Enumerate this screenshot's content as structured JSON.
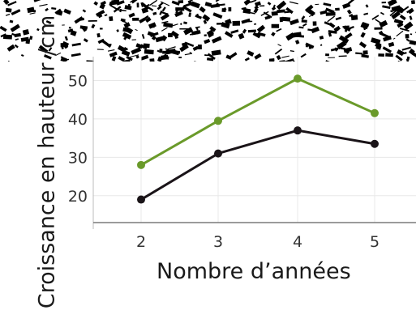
{
  "chart_data": {
    "type": "line",
    "title": "",
    "xlabel": "Nombre d’années",
    "ylabel": "Croissance en hauteur /cm",
    "x": [
      2,
      3,
      4,
      5
    ],
    "xticks": [
      "2",
      "3",
      "4",
      "5"
    ],
    "yticks": [
      "20",
      "30",
      "40",
      "50"
    ],
    "ylim": [
      13,
      52
    ],
    "grid": true,
    "series": [
      {
        "values": [
          28,
          39.5,
          50.5,
          41.5
        ],
        "color": "#6a9a2a"
      },
      {
        "values": [
          19,
          31,
          37,
          33.5
        ],
        "color": "#1a1418"
      }
    ]
  }
}
